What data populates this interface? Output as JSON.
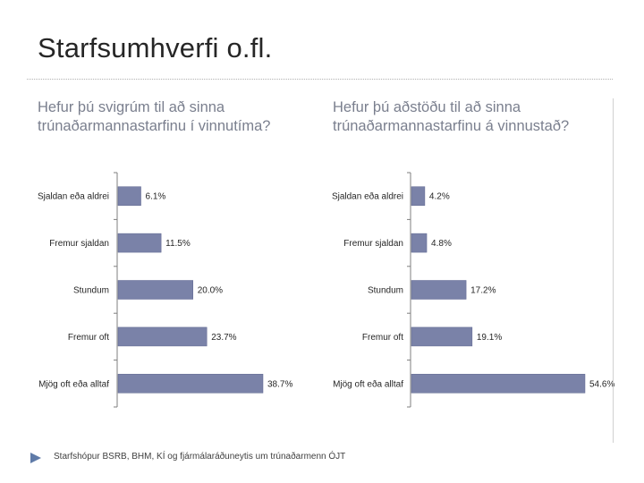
{
  "page": {
    "title": "Starfsumhverfi o.fl.",
    "footer": "Starfshópur BSRB, BHM, KÍ og fjármálaráðuneytis um trúnaðarmenn   ÓJT"
  },
  "colors": {
    "bar": "#7a82a8",
    "bar_edge": "#5f6690",
    "axis": "#7f7f7f"
  },
  "chart_data": [
    {
      "type": "bar",
      "orientation": "horizontal",
      "title": "Hefur þú svigrúm til að sinna trúnaðarmannastarfinu í vinnutíma?",
      "categories": [
        "Sjaldan eða aldrei",
        "Fremur sjaldan",
        "Stundum",
        "Fremur oft",
        "Mjög oft eða alltaf"
      ],
      "values": [
        6.1,
        11.5,
        20.0,
        23.7,
        38.7
      ],
      "labels": [
        "6.1%",
        "11.5%",
        "20.0%",
        "23.7%",
        "38.7%"
      ],
      "xlim": [
        0,
        38.7
      ]
    },
    {
      "type": "bar",
      "orientation": "horizontal",
      "title": "Hefur þú aðstöðu til að sinna trúnaðarmannastarfinu á vinnustað?",
      "categories": [
        "Sjaldan eða aldrei",
        "Fremur sjaldan",
        "Stundum",
        "Fremur oft",
        "Mjög oft eða alltaf"
      ],
      "values": [
        4.2,
        4.8,
        17.2,
        19.1,
        54.6
      ],
      "labels": [
        "4.2%",
        "4.8%",
        "17.2%",
        "19.1%",
        "54.6%"
      ],
      "xlim": [
        0,
        54.6
      ]
    }
  ]
}
